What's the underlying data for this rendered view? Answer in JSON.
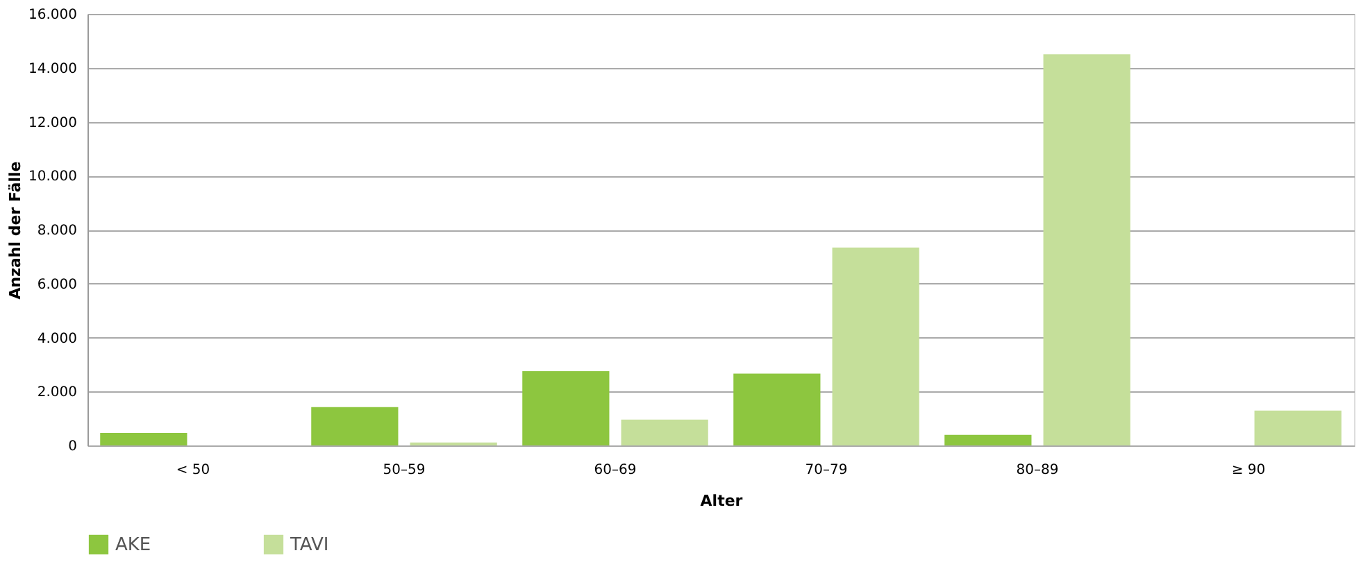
{
  "chart_data": {
    "type": "bar",
    "xlabel": "Alter",
    "ylabel": "Anzahl der Fälle",
    "categories": [
      "< 50",
      "50–59",
      "60–69",
      "70–79",
      "80–89",
      "≥ 90"
    ],
    "series": [
      {
        "name": "AKE",
        "color": "#8dc63f",
        "values": [
          460,
          1420,
          2750,
          2660,
          390,
          0
        ]
      },
      {
        "name": "TAVI",
        "color": "#c5df9a",
        "values": [
          0,
          110,
          960,
          7340,
          14500,
          1290
        ]
      }
    ],
    "ylim": [
      0,
      16000
    ],
    "yticks": [
      0,
      {
        "value": 2000,
        "label": "2.000"
      },
      {
        "value": 4000,
        "label": "4.000"
      },
      {
        "value": 6000,
        "label": "6.000"
      },
      {
        "value": 8000,
        "label": "8.000"
      },
      {
        "value": 10000,
        "label": "10.000"
      },
      {
        "value": 12000,
        "label": "12.000"
      },
      {
        "value": 14000,
        "label": "14.000"
      },
      {
        "value": 16000,
        "label": "16.000"
      }
    ],
    "grid": "y",
    "legend": "bottom left"
  }
}
